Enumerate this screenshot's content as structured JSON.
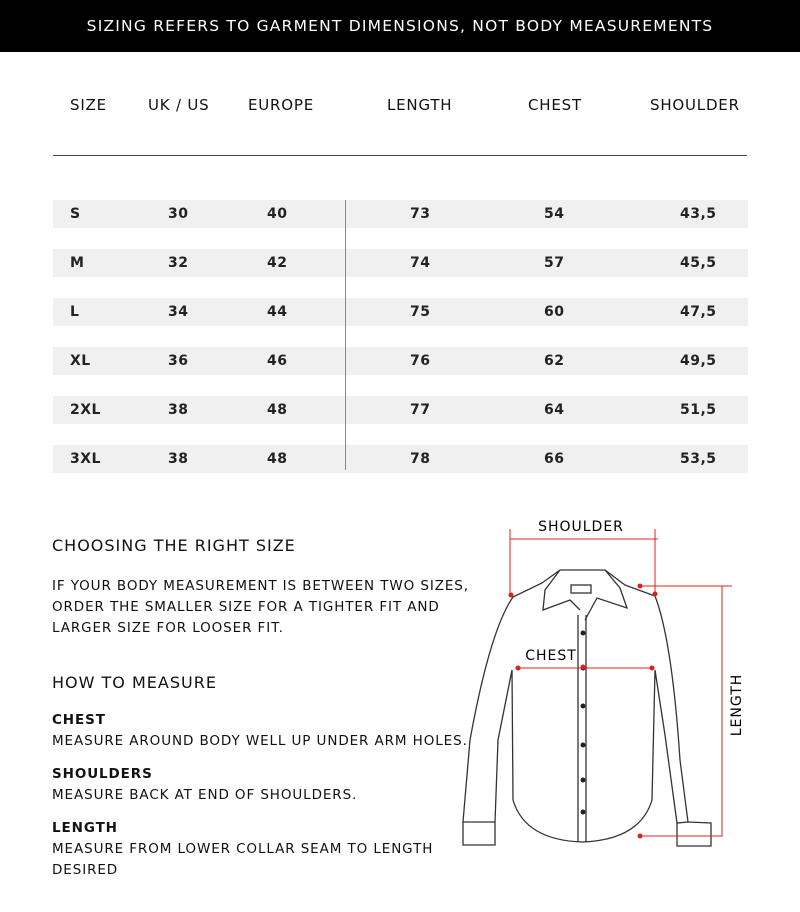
{
  "banner": "SIZING REFERS TO GARMENT DIMENSIONS, NOT BODY MEASUREMENTS",
  "table": {
    "headers": [
      "SIZE",
      "UK / US",
      "EUROPE",
      "LENGTH",
      "CHEST",
      "SHOULDER"
    ],
    "rows": [
      [
        "S",
        "30",
        "40",
        "73",
        "54",
        "43,5"
      ],
      [
        "M",
        "32",
        "42",
        "74",
        "57",
        "45,5"
      ],
      [
        "L",
        "34",
        "44",
        "75",
        "60",
        "47,5"
      ],
      [
        "XL",
        "36",
        "46",
        "76",
        "62",
        "49,5"
      ],
      [
        "2XL",
        "38",
        "48",
        "77",
        "64",
        "51,5"
      ],
      [
        "3XL",
        "38",
        "48",
        "78",
        "66",
        "53,5"
      ]
    ]
  },
  "choosing": {
    "title": "CHOOSING THE RIGHT SIZE",
    "lines": [
      "IF YOUR BODY MEASUREMENT IS BETWEEN TWO SIZES,",
      "ORDER THE SMALLER SIZE FOR A TIGHTER FIT AND",
      "LARGER SIZE FOR LOOSER FIT."
    ]
  },
  "measure": {
    "title": "HOW TO MEASURE",
    "chest_label": "CHEST",
    "chest_text": "MEASURE AROUND BODY WELL UP UNDER ARM HOLES.",
    "shoulders_label": "SHOULDERS",
    "shoulders_text": "MEASURE BACK AT END OF SHOULDERS.",
    "length_label": "LENGTH",
    "length_lines": [
      "MEASURE FROM LOWER COLLAR SEAM TO LENGTH",
      "DESIRED"
    ]
  },
  "diagram": {
    "shoulder": "SHOULDER",
    "chest": "CHEST",
    "length": "LENGTH",
    "accent": "#e02020"
  }
}
